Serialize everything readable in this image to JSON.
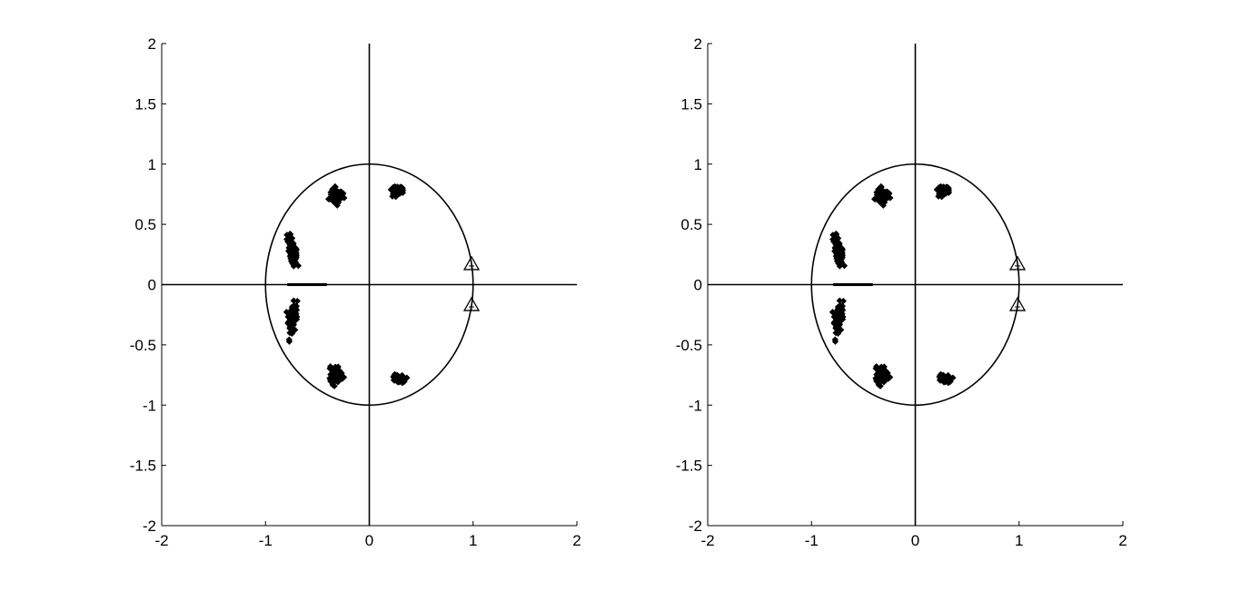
{
  "colors": {
    "background": "#ffffff",
    "ink": "#000000"
  },
  "chart_data": [
    {
      "type": "scatter",
      "title": "",
      "xlabel": "",
      "ylabel": "",
      "xlim": [
        -2,
        2
      ],
      "ylim": [
        -2,
        2
      ],
      "grid": false,
      "xticks": [
        -2,
        -1,
        0,
        1,
        2
      ],
      "yticks": [
        -2,
        -1.5,
        -1,
        -0.5,
        0,
        0.5,
        1,
        1.5,
        2
      ],
      "xtick_labels": [
        "-2",
        "-1",
        "0",
        "1",
        "2"
      ],
      "ytick_labels": [
        "-2",
        "-1.5",
        "-1",
        "-0.5",
        "0",
        "0.5",
        "1",
        "1.5",
        "2"
      ],
      "reference_lines": {
        "unit_circle": true,
        "x_axis_line": true,
        "y_axis_line": true
      },
      "clusters": [
        {
          "marker": "diamond",
          "center": [
            -0.32,
            0.74
          ],
          "spread": [
            0.05,
            0.06
          ],
          "count": 90
        },
        {
          "marker": "diamond",
          "center": [
            -0.32,
            -0.74
          ],
          "spread": [
            0.05,
            0.06
          ],
          "count": 90
        },
        {
          "marker": "diamond",
          "center": [
            0.28,
            0.78
          ],
          "spread": [
            0.055,
            0.03
          ],
          "count": 60
        },
        {
          "marker": "diamond",
          "center": [
            0.28,
            -0.78
          ],
          "spread": [
            0.055,
            0.03
          ],
          "count": 60
        },
        {
          "marker": "diamond",
          "center": [
            -0.74,
            0.27
          ],
          "spread": [
            0.035,
            0.11
          ],
          "count": 80,
          "tilt": -0.22
        },
        {
          "marker": "diamond",
          "center": [
            -0.74,
            -0.27
          ],
          "spread": [
            0.035,
            0.11
          ],
          "count": 80,
          "tilt": 0.22
        }
      ],
      "axis_points": {
        "marker": "dot",
        "x_from": -0.78,
        "x_to": -0.42,
        "y": 0,
        "count": 40
      },
      "special_points": [
        {
          "marker": "triangle",
          "x": 0.985,
          "y": 0.17
        },
        {
          "marker": "triangle",
          "x": 0.985,
          "y": -0.17
        }
      ]
    },
    {
      "type": "scatter",
      "title": "",
      "xlabel": "",
      "ylabel": "",
      "xlim": [
        -2,
        2
      ],
      "ylim": [
        -2,
        2
      ],
      "grid": false,
      "xticks": [
        -2,
        -1,
        0,
        1,
        2
      ],
      "yticks": [
        -2,
        -1.5,
        -1,
        -0.5,
        0,
        0.5,
        1,
        1.5,
        2
      ],
      "xtick_labels": [
        "-2",
        "-1",
        "0",
        "1",
        "2"
      ],
      "ytick_labels": [
        "-2",
        "-1.5",
        "-1",
        "-0.5",
        "0",
        "0.5",
        "1",
        "1.5",
        "2"
      ],
      "reference_lines": {
        "unit_circle": true,
        "x_axis_line": true,
        "y_axis_line": true
      },
      "clusters": [
        {
          "marker": "diamond",
          "center": [
            -0.32,
            0.74
          ],
          "spread": [
            0.05,
            0.06
          ],
          "count": 90
        },
        {
          "marker": "diamond",
          "center": [
            -0.32,
            -0.74
          ],
          "spread": [
            0.05,
            0.06
          ],
          "count": 90
        },
        {
          "marker": "diamond",
          "center": [
            0.28,
            0.78
          ],
          "spread": [
            0.055,
            0.03
          ],
          "count": 60
        },
        {
          "marker": "diamond",
          "center": [
            0.28,
            -0.78
          ],
          "spread": [
            0.055,
            0.03
          ],
          "count": 60
        },
        {
          "marker": "diamond",
          "center": [
            -0.74,
            0.27
          ],
          "spread": [
            0.035,
            0.11
          ],
          "count": 80,
          "tilt": -0.22
        },
        {
          "marker": "diamond",
          "center": [
            -0.74,
            -0.27
          ],
          "spread": [
            0.035,
            0.11
          ],
          "count": 80,
          "tilt": 0.22
        }
      ],
      "axis_points": {
        "marker": "dot",
        "x_from": -0.78,
        "x_to": -0.42,
        "y": 0,
        "count": 40
      },
      "special_points": [
        {
          "marker": "triangle",
          "x": 0.985,
          "y": 0.17
        },
        {
          "marker": "triangle",
          "x": 0.985,
          "y": -0.17
        }
      ]
    }
  ]
}
